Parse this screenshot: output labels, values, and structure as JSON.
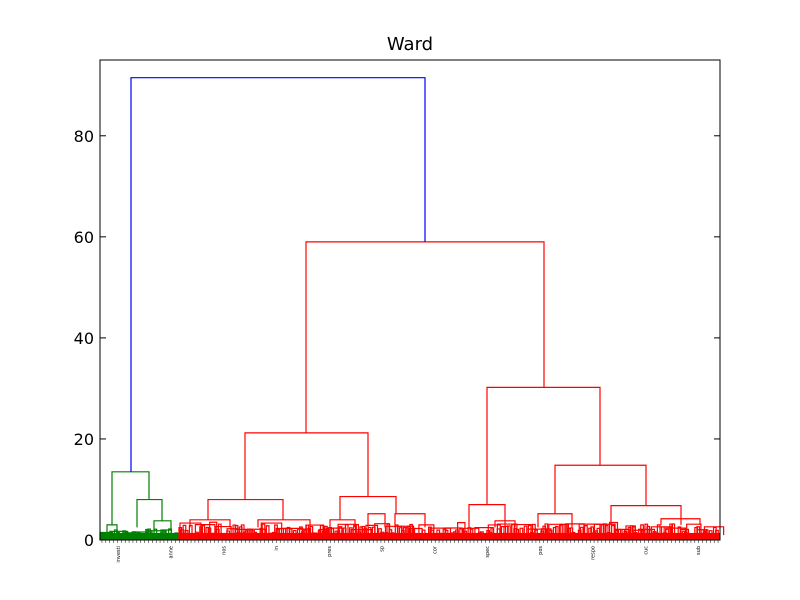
{
  "chart_data": {
    "type": "dendrogram",
    "title": "Ward",
    "xlabel": "",
    "ylabel": "",
    "ylim": [
      0,
      95
    ],
    "yticks": [
      0,
      20,
      40,
      60,
      80
    ],
    "colors": {
      "above_threshold": "#0000ff",
      "cluster_1": "#008000",
      "cluster_2": "#ff0000",
      "frame": "#000000"
    },
    "leaf_count_estimate": 620,
    "leaf_labels_visible": [
      "investi",
      "anne",
      "nos",
      "in",
      "pres",
      "sp",
      "cor",
      "spec",
      "pos",
      "respo",
      "cuc",
      "sub"
    ],
    "merges": [
      {
        "left": "green_cluster",
        "right": "red_cluster",
        "height": 91.5,
        "color": "#0000ff"
      },
      {
        "left": "green_left",
        "right": "green_right",
        "height": 13.5,
        "color": "#008000"
      },
      {
        "left": "green_a",
        "right": "green_b",
        "height": 3.0,
        "color": "#008000"
      },
      {
        "left": "green_c",
        "right": "green_d",
        "height": 8.0,
        "color": "#008000"
      },
      {
        "left": "red_left",
        "right": "red_right",
        "height": 59.0,
        "color": "#ff0000"
      },
      {
        "left": "red_ll",
        "right": "red_lr",
        "height": 21.2,
        "color": "#ff0000"
      },
      {
        "left": "red_lla",
        "right": "red_llb",
        "height": 8.0,
        "color": "#ff0000"
      },
      {
        "left": "red_lra",
        "right": "red_lrb",
        "height": 8.6,
        "color": "#ff0000"
      },
      {
        "left": "red_lrb1",
        "right": "red_lrb2",
        "height": 5.2,
        "color": "#ff0000"
      },
      {
        "left": "red_rl",
        "right": "red_rr",
        "height": 30.2,
        "color": "#ff0000"
      },
      {
        "left": "red_rla",
        "right": "red_rlb",
        "height": 7.0,
        "color": "#ff0000"
      },
      {
        "left": "red_rra",
        "right": "red_rrb",
        "height": 14.8,
        "color": "#ff0000"
      },
      {
        "left": "red_rra1",
        "right": "red_rra2",
        "height": 5.2,
        "color": "#ff0000"
      },
      {
        "left": "red_rrb1",
        "right": "red_rrb2",
        "height": 6.8,
        "color": "#ff0000"
      }
    ]
  }
}
